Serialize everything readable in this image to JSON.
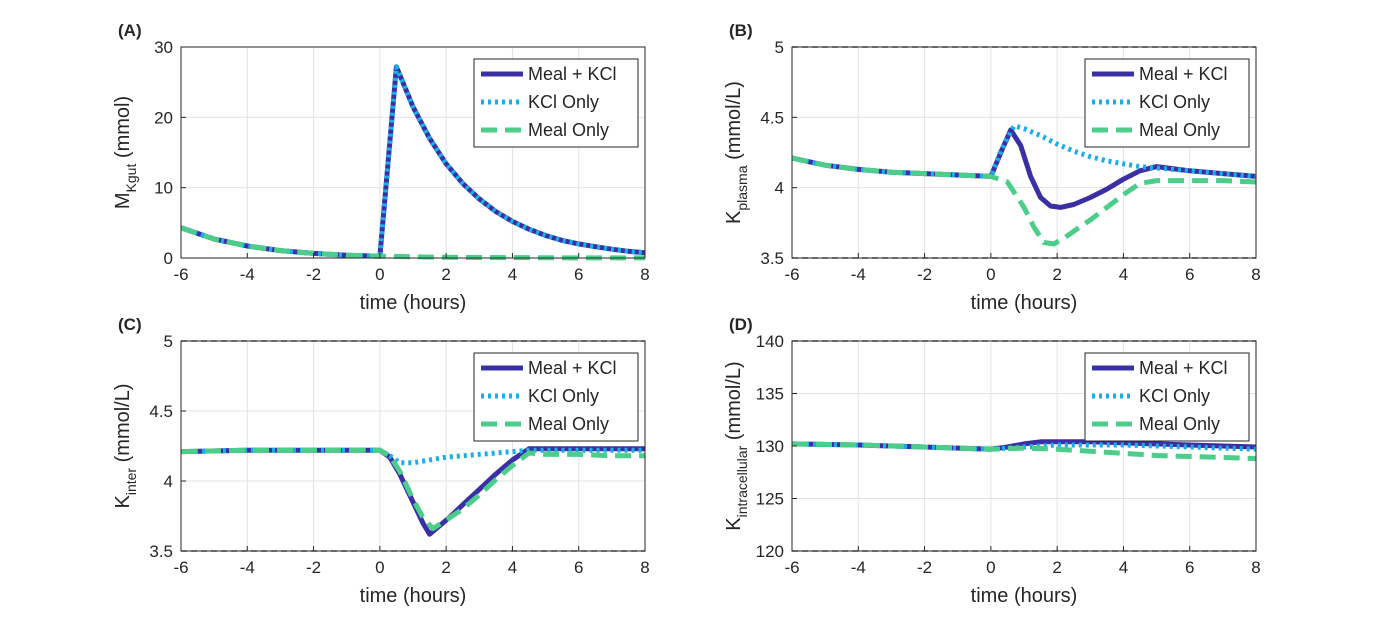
{
  "colors": {
    "meal_kcl": "#3b2fa6",
    "kcl_only": "#1aaee8",
    "meal_only": "#4ccd8a",
    "grid": "#e3e3e3",
    "axis": "#262626",
    "ref_line": "#aaaaaa"
  },
  "legend": [
    "Meal + KCl",
    "KCl Only",
    "Meal Only"
  ],
  "chart_data": [
    {
      "type": "line",
      "panel_label": "(A)",
      "xlabel": "time (hours)",
      "ylabel_main": "M",
      "ylabel_sub": "Kgut",
      "ylabel_tail": " (mmol)",
      "xlim": [
        -6,
        8
      ],
      "ylim": [
        0,
        30
      ],
      "xticks": [
        -6,
        -4,
        -2,
        0,
        2,
        4,
        6,
        8
      ],
      "yticks": [
        0,
        10,
        20,
        30
      ],
      "grid": true,
      "legend_position": "top-right",
      "series": [
        {
          "name": "Meal + KCl",
          "style": "solid",
          "x": [
            -6,
            -5,
            -4,
            -3,
            -2,
            -1,
            0,
            0.5,
            1,
            1.5,
            2,
            2.5,
            3,
            3.5,
            4,
            4.5,
            5,
            5.5,
            6,
            6.5,
            7,
            7.5,
            8
          ],
          "y": [
            4.3,
            2.7,
            1.7,
            1.05,
            0.65,
            0.4,
            0.25,
            27.2,
            21.5,
            17.0,
            13.4,
            10.6,
            8.4,
            6.6,
            5.2,
            4.1,
            3.2,
            2.5,
            2.0,
            1.6,
            1.25,
            0.95,
            0.75
          ]
        },
        {
          "name": "KCl Only",
          "style": "dotted",
          "x": [
            -6,
            -5,
            -4,
            -3,
            -2,
            -1,
            0,
            0.5,
            1,
            1.5,
            2,
            2.5,
            3,
            3.5,
            4,
            4.5,
            5,
            5.5,
            6,
            6.5,
            7,
            7.5,
            8
          ],
          "y": [
            4.3,
            2.7,
            1.7,
            1.05,
            0.65,
            0.4,
            0.25,
            27.2,
            21.5,
            17.0,
            13.4,
            10.6,
            8.4,
            6.6,
            5.2,
            4.1,
            3.2,
            2.5,
            2.0,
            1.6,
            1.25,
            0.95,
            0.75
          ]
        },
        {
          "name": "Meal Only",
          "style": "dashed",
          "x": [
            -6,
            -5,
            -4,
            -3,
            -2,
            -1,
            0,
            2,
            4,
            6,
            8
          ],
          "y": [
            4.3,
            2.7,
            1.7,
            1.05,
            0.65,
            0.4,
            0.25,
            0.1,
            0.05,
            0.02,
            0.01
          ]
        }
      ]
    },
    {
      "type": "line",
      "panel_label": "(B)",
      "xlabel": "time (hours)",
      "ylabel_main": "K",
      "ylabel_sub": "plasma",
      "ylabel_tail": " (mmol/L)",
      "xlim": [
        -6,
        8
      ],
      "ylim": [
        3.5,
        5
      ],
      "xticks": [
        -6,
        -4,
        -2,
        0,
        2,
        4,
        6,
        8
      ],
      "yticks": [
        3.5,
        4,
        4.5,
        5
      ],
      "grid": true,
      "reference_lines": [
        3.5,
        5
      ],
      "legend_position": "top-right",
      "series": [
        {
          "name": "Meal + KCl",
          "style": "solid",
          "x": [
            -6,
            -5,
            -4,
            -3,
            -2,
            -1,
            0,
            0.3,
            0.6,
            0.9,
            1.2,
            1.5,
            1.8,
            2.1,
            2.5,
            3,
            3.5,
            4,
            4.5,
            5,
            6,
            7,
            8
          ],
          "y": [
            4.21,
            4.16,
            4.13,
            4.11,
            4.1,
            4.09,
            4.08,
            4.25,
            4.41,
            4.3,
            4.08,
            3.93,
            3.87,
            3.86,
            3.88,
            3.93,
            3.99,
            4.06,
            4.12,
            4.15,
            4.12,
            4.1,
            4.08
          ]
        },
        {
          "name": "KCl Only",
          "style": "dotted",
          "x": [
            -6,
            -5,
            -4,
            -3,
            -2,
            -1,
            0,
            0.3,
            0.7,
            1,
            1.5,
            2,
            2.5,
            3,
            3.5,
            4,
            4.5,
            5,
            6,
            7,
            8
          ],
          "y": [
            4.21,
            4.16,
            4.13,
            4.11,
            4.1,
            4.09,
            4.08,
            4.26,
            4.44,
            4.42,
            4.37,
            4.31,
            4.26,
            4.22,
            4.19,
            4.17,
            4.15,
            4.14,
            4.12,
            4.1,
            4.08
          ]
        },
        {
          "name": "Meal Only",
          "style": "dashed",
          "x": [
            -6,
            -5,
            -4,
            -3,
            -2,
            -1,
            0,
            0.5,
            1,
            1.3,
            1.6,
            1.9,
            2.2,
            2.5,
            3,
            3.5,
            4,
            4.5,
            5,
            6,
            7,
            8
          ],
          "y": [
            4.21,
            4.16,
            4.13,
            4.11,
            4.1,
            4.09,
            4.08,
            4.04,
            3.86,
            3.72,
            3.61,
            3.6,
            3.64,
            3.69,
            3.77,
            3.86,
            3.95,
            4.03,
            4.05,
            4.05,
            4.05,
            4.04
          ]
        }
      ]
    },
    {
      "type": "line",
      "panel_label": "(C)",
      "xlabel": "time (hours)",
      "ylabel_main": "K",
      "ylabel_sub": "inter",
      "ylabel_tail": " (mmol/L)",
      "xlim": [
        -6,
        8
      ],
      "ylim": [
        3.5,
        5
      ],
      "xticks": [
        -6,
        -4,
        -2,
        0,
        2,
        4,
        6,
        8
      ],
      "yticks": [
        3.5,
        4,
        4.5,
        5
      ],
      "grid": true,
      "reference_lines": [
        3.5,
        5
      ],
      "legend_position": "top-right",
      "series": [
        {
          "name": "Meal + KCl",
          "style": "solid",
          "x": [
            -6,
            -4,
            -2,
            0,
            0.3,
            0.6,
            1,
            1.3,
            1.5,
            1.7,
            2.1,
            2.5,
            3,
            3.5,
            4,
            4.5,
            5,
            6,
            7,
            8
          ],
          "y": [
            4.21,
            4.22,
            4.22,
            4.22,
            4.17,
            4.05,
            3.85,
            3.7,
            3.62,
            3.66,
            3.74,
            3.83,
            3.94,
            4.05,
            4.15,
            4.23,
            4.23,
            4.23,
            4.23,
            4.23
          ]
        },
        {
          "name": "KCl Only",
          "style": "dotted",
          "x": [
            -6,
            -4,
            -2,
            0,
            0.3,
            0.6,
            1,
            1.5,
            2,
            2.5,
            3,
            3.5,
            4,
            4.5,
            5,
            6,
            7,
            8
          ],
          "y": [
            4.21,
            4.22,
            4.22,
            4.22,
            4.18,
            4.13,
            4.13,
            4.15,
            4.17,
            4.18,
            4.19,
            4.2,
            4.21,
            4.22,
            4.22,
            4.22,
            4.22,
            4.22
          ]
        },
        {
          "name": "Meal Only",
          "style": "dashed",
          "x": [
            -6,
            -4,
            -2,
            0,
            0.3,
            0.6,
            1,
            1.3,
            1.6,
            2,
            2.5,
            3,
            3.5,
            4,
            4.5,
            5,
            6,
            7,
            8
          ],
          "y": [
            4.21,
            4.22,
            4.22,
            4.22,
            4.18,
            4.07,
            3.87,
            3.74,
            3.66,
            3.72,
            3.8,
            3.9,
            4.01,
            4.11,
            4.2,
            4.19,
            4.19,
            4.18,
            4.18
          ]
        }
      ]
    },
    {
      "type": "line",
      "panel_label": "(D)",
      "xlabel": "time (hours)",
      "ylabel_main": "K",
      "ylabel_sub": "intracellular",
      "ylabel_tail": " (mmol/L)",
      "xlim": [
        -6,
        8
      ],
      "ylim": [
        120,
        140
      ],
      "xticks": [
        -6,
        -4,
        -2,
        0,
        2,
        4,
        6,
        8
      ],
      "yticks": [
        120,
        125,
        130,
        135,
        140
      ],
      "grid": true,
      "reference_lines": [
        120,
        140
      ],
      "legend_position": "top-right",
      "series": [
        {
          "name": "Meal + KCl",
          "style": "solid",
          "x": [
            -6,
            -4,
            -2,
            0,
            0.5,
            1,
            1.5,
            2,
            3,
            4,
            5,
            6,
            7,
            8
          ],
          "y": [
            130.2,
            130.1,
            129.9,
            129.7,
            129.9,
            130.2,
            130.4,
            130.4,
            130.4,
            130.3,
            130.2,
            130.1,
            130.0,
            129.9
          ]
        },
        {
          "name": "KCl Only",
          "style": "dotted",
          "x": [
            -6,
            -4,
            -2,
            0,
            0.5,
            1,
            1.5,
            2,
            3,
            4,
            5,
            6,
            7,
            8
          ],
          "y": [
            130.2,
            130.1,
            129.9,
            129.7,
            129.8,
            129.9,
            130.0,
            130.1,
            130.1,
            130.1,
            130.0,
            129.9,
            129.8,
            129.7
          ]
        },
        {
          "name": "Meal Only",
          "style": "dashed",
          "x": [
            -6,
            -4,
            -2,
            0,
            1,
            2,
            3,
            4,
            5,
            6,
            7,
            8
          ],
          "y": [
            130.2,
            130.1,
            129.9,
            129.7,
            129.8,
            129.7,
            129.5,
            129.3,
            129.1,
            129.0,
            128.9,
            128.8
          ]
        }
      ]
    }
  ]
}
